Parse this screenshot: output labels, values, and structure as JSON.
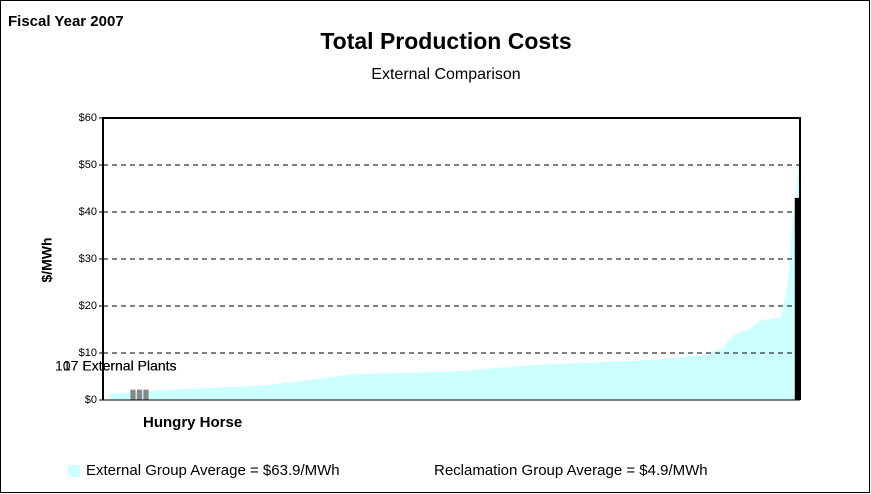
{
  "chart_data": {
    "type": "area",
    "title": "Total Production Costs",
    "subtitle": "External Comparison",
    "ylabel": "$/MWh",
    "annotations": {
      "fiscal": "Fiscal Year 2007",
      "plant": "Hungry Horse",
      "count_a": "107 External Plants",
      "count_b": "17 External Plants"
    },
    "xlim": [
      0,
      107
    ],
    "ylim": [
      0,
      60
    ],
    "yticks": [
      {
        "value": 0,
        "label": "$0"
      },
      {
        "value": 10,
        "label": "$10"
      },
      {
        "value": 20,
        "label": "$20"
      },
      {
        "value": 30,
        "label": "$30"
      },
      {
        "value": 40,
        "label": "$40"
      },
      {
        "value": 50,
        "label": "$50"
      },
      {
        "value": 60,
        "label": "$60"
      }
    ],
    "grid": true,
    "series": [
      {
        "name": "External Group Average = $63.9/MWh",
        "color": "#ccffff",
        "x": [
          1,
          5,
          15,
          24,
          30,
          39,
          53,
          67,
          84,
          92,
          95,
          97,
          99,
          101,
          104,
          105,
          106,
          107
        ],
        "values": [
          1.3,
          1.8,
          2.5,
          3,
          4,
          5.5,
          6,
          7.5,
          8.5,
          9.5,
          11,
          14,
          15,
          17,
          17.5,
          23,
          40,
          53
        ]
      },
      {
        "name": "Reclamation Group Average = $4.9/MWh",
        "color": "#888888",
        "x": [
          5,
          6,
          7,
          107
        ],
        "colors": [
          "#888888",
          "#888888",
          "#888888",
          "#000000"
        ],
        "values": [
          2.2,
          2.2,
          2.2,
          43
        ]
      }
    ]
  }
}
